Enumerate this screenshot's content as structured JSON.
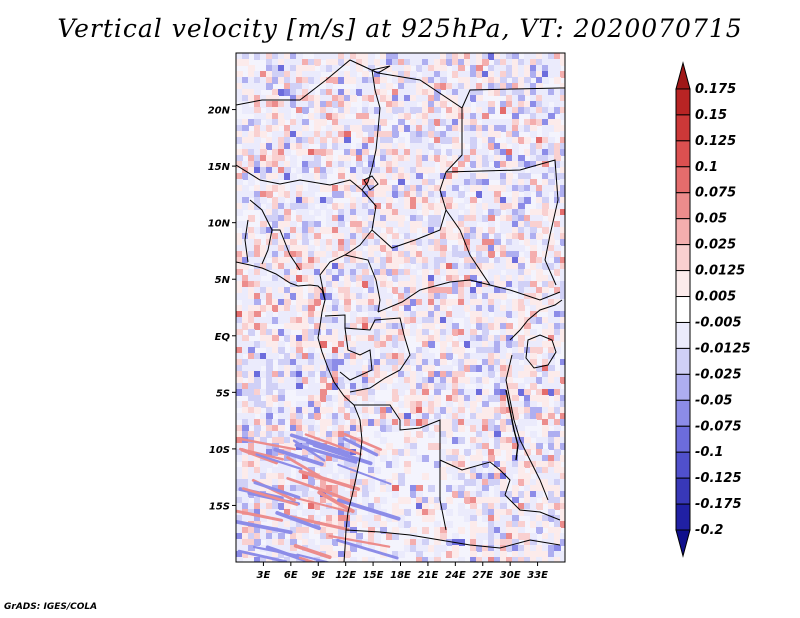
{
  "title": "Vertical velocity [m/s] at 925hPa, VT: 2020070715",
  "credit": "GrADS: IGES/COLA",
  "map": {
    "lon_range": [
      0,
      36
    ],
    "lat_range": [
      -20,
      25
    ],
    "lat_ticks": [
      {
        "lat": 20,
        "label": "20N"
      },
      {
        "lat": 15,
        "label": "15N"
      },
      {
        "lat": 10,
        "label": "10N"
      },
      {
        "lat": 5,
        "label": "5N"
      },
      {
        "lat": 0,
        "label": "EQ"
      },
      {
        "lat": -5,
        "label": "5S"
      },
      {
        "lat": -10,
        "label": "10S"
      },
      {
        "lat": -15,
        "label": "15S"
      }
    ],
    "lon_ticks": [
      {
        "lon": 3,
        "label": "3E"
      },
      {
        "lon": 6,
        "label": "6E"
      },
      {
        "lon": 9,
        "label": "9E"
      },
      {
        "lon": 12,
        "label": "12E"
      },
      {
        "lon": 15,
        "label": "15E"
      },
      {
        "lon": 18,
        "label": "18E"
      },
      {
        "lon": 21,
        "label": "21E"
      },
      {
        "lon": 24,
        "label": "24E"
      },
      {
        "lon": 27,
        "label": "27E"
      },
      {
        "lon": 30,
        "label": "30E"
      },
      {
        "lon": 33,
        "label": "33E"
      }
    ]
  },
  "colorbar": {
    "labels": [
      "0.175",
      "0.15",
      "0.125",
      "0.1",
      "0.075",
      "0.05",
      "0.025",
      "0.0125",
      "0.005",
      "-0.005",
      "-0.0125",
      "-0.025",
      "-0.05",
      "-0.075",
      "-0.1",
      "-0.125",
      "-0.175",
      "-0.2"
    ],
    "colors": [
      "#a01818",
      "#b82424",
      "#cc3838",
      "#dc5050",
      "#e46c6c",
      "#ec8c8c",
      "#f4aeae",
      "#f9d0d0",
      "#fcebeb",
      "#ffffff",
      "#ebebfc",
      "#d0d0f6",
      "#aeaef0",
      "#8c8ce8",
      "#6c6cdc",
      "#5050cc",
      "#3838b8",
      "#2020a4",
      "#10108c"
    ]
  }
}
